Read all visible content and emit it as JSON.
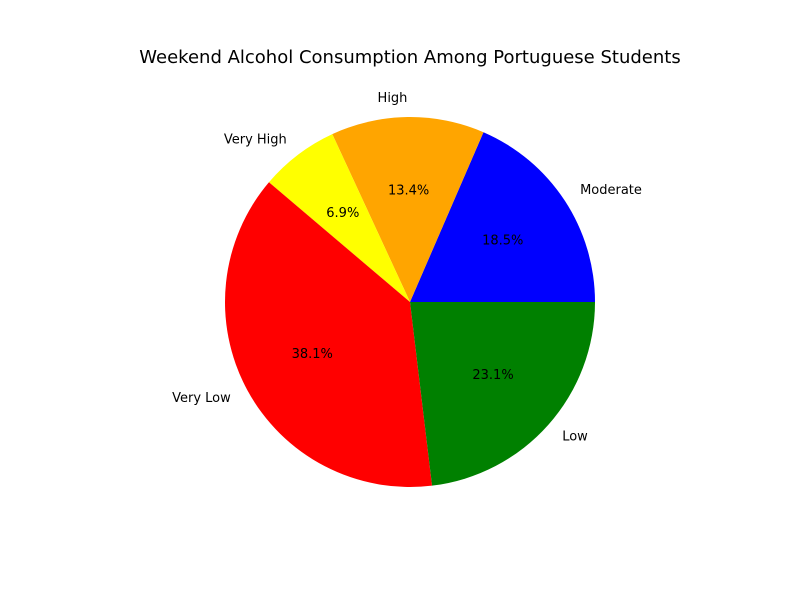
{
  "chart_data": {
    "type": "pie",
    "title": "Weekend Alcohol Consumption Among Portuguese Students",
    "start_angle_deg": 0,
    "direction": "counterclockwise",
    "slices": [
      {
        "label": "Moderate",
        "value": 18.5,
        "pct_text": "18.5%",
        "color": "#0000ff"
      },
      {
        "label": "High",
        "value": 13.4,
        "pct_text": "13.4%",
        "color": "#ffa500"
      },
      {
        "label": "Very High",
        "value": 6.9,
        "pct_text": "6.9%",
        "color": "#ffff00"
      },
      {
        "label": "Very Low",
        "value": 38.1,
        "pct_text": "38.1%",
        "color": "#ff0000"
      },
      {
        "label": "Low",
        "value": 23.1,
        "pct_text": "23.1%",
        "color": "#008000"
      }
    ]
  }
}
